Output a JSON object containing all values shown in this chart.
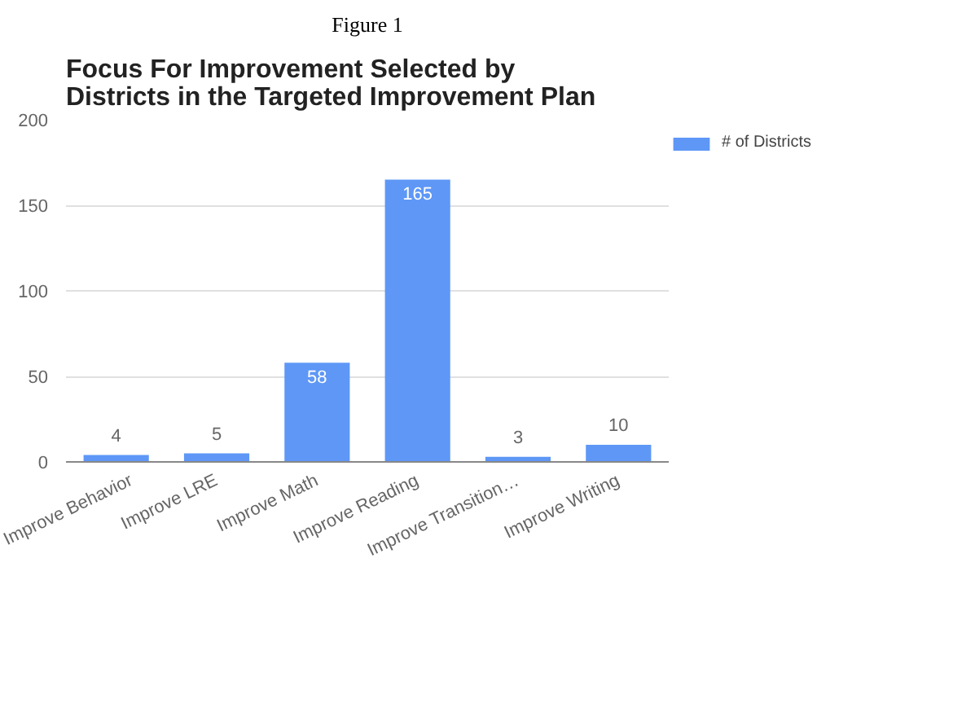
{
  "chart_data": {
    "type": "bar",
    "title": "Focus For Improvement Selected by Districts in the Targeted Improvement Plan",
    "annotations": [
      "Figure 1"
    ],
    "categories": [
      "Improve Behavior",
      "Improve LRE",
      "Improve Math",
      "Improve Reading",
      "Improve Transition…",
      "Improve Writing"
    ],
    "series": [
      {
        "name": "# of Districts",
        "color": "#5e97f6",
        "values": [
          4,
          5,
          58,
          165,
          3,
          10
        ]
      }
    ],
    "ylim": [
      0,
      200
    ],
    "yticks": [
      0,
      50,
      100,
      150,
      200
    ],
    "grid": "y",
    "legend": "top right",
    "data_labels": true
  }
}
